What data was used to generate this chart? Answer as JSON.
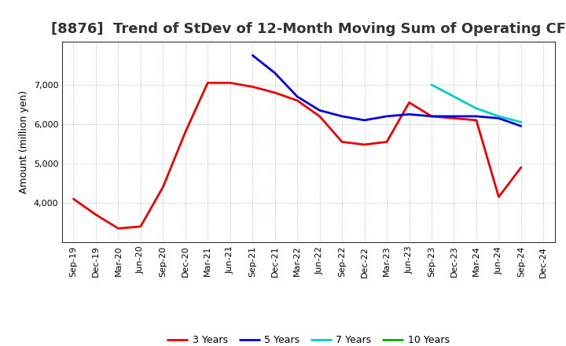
{
  "title": "[8876]  Trend of StDev of 12-Month Moving Sum of Operating CF",
  "ylabel": "Amount (million yen)",
  "background_color": "#ffffff",
  "grid_color": "#aaaaaa",
  "x_labels": [
    "Sep-19",
    "Dec-19",
    "Mar-20",
    "Jun-20",
    "Sep-20",
    "Dec-20",
    "Mar-21",
    "Jun-21",
    "Sep-21",
    "Dec-21",
    "Mar-22",
    "Jun-22",
    "Sep-22",
    "Dec-22",
    "Mar-23",
    "Jun-23",
    "Sep-23",
    "Dec-23",
    "Mar-24",
    "Jun-24",
    "Sep-24",
    "Dec-24"
  ],
  "series": {
    "3 Years": {
      "color": "#ee0000",
      "data": [
        4100,
        3700,
        3350,
        3400,
        4400,
        5800,
        7050,
        7050,
        6950,
        6800,
        6600,
        6200,
        5550,
        5480,
        5550,
        6550,
        6200,
        6150,
        6100,
        4150,
        4900,
        null
      ]
    },
    "5 Years": {
      "color": "#0000dd",
      "data": [
        null,
        null,
        null,
        null,
        null,
        null,
        null,
        null,
        7750,
        7300,
        6700,
        6350,
        6200,
        6100,
        6200,
        6250,
        6200,
        6200,
        6200,
        6150,
        5950,
        null
      ]
    },
    "7 Years": {
      "color": "#00cccc",
      "data": [
        null,
        null,
        null,
        null,
        null,
        null,
        null,
        null,
        null,
        null,
        null,
        null,
        null,
        null,
        null,
        null,
        7000,
        6700,
        6400,
        6200,
        6050,
        null
      ]
    },
    "10 Years": {
      "color": "#00aa00",
      "data": [
        null,
        null,
        null,
        null,
        null,
        null,
        null,
        null,
        null,
        null,
        null,
        null,
        null,
        null,
        null,
        null,
        null,
        null,
        null,
        null,
        null,
        null
      ]
    }
  },
  "ylim": [
    3000,
    8100
  ],
  "yticks": [
    4000,
    5000,
    6000,
    7000
  ],
  "title_fontsize": 13,
  "axis_label_fontsize": 9,
  "tick_fontsize": 8,
  "legend_fontsize": 9
}
